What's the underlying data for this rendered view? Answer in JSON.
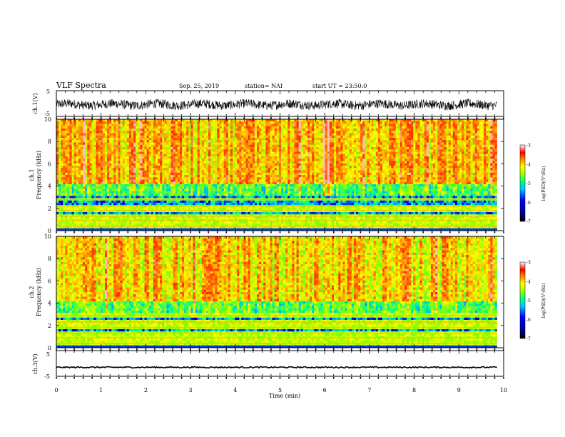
{
  "header": {
    "title": "VLF Spectra",
    "date": "Sep. 25, 2019",
    "station": "station= NAI",
    "start": "start UT = 23:50:0"
  },
  "chart_data": [
    {
      "type": "line",
      "name": "ch1-waveform",
      "ylabel": "ch.1(V)",
      "ylim": [
        -5,
        5
      ],
      "yticks": [
        "5",
        "-5"
      ],
      "note_trace": "noisy waveform centred near -1 V spanning 0-9.8 min"
    },
    {
      "type": "heatmap",
      "name": "ch1-spectrogram",
      "ylabel_lines": [
        "ch.1",
        "Frequency (kHz)"
      ],
      "ylim": [
        0,
        10
      ],
      "yticks": [
        "0",
        "2",
        "4",
        "6",
        "8",
        "10"
      ],
      "xlim": [
        0,
        10
      ],
      "colorbar": {
        "label": "log(PSD)(V²/Hz)",
        "range": [
          -7,
          -3
        ],
        "ticks": [
          "-3",
          "-4",
          "-5",
          "-6",
          "-7"
        ]
      },
      "bands_kHz": [
        0.4,
        0.9,
        1.3,
        1.8,
        2.2,
        2.8
      ]
    },
    {
      "type": "heatmap",
      "name": "ch2-spectrogram",
      "ylabel_lines": [
        "ch.2",
        "Frequency (kHz)"
      ],
      "ylim": [
        0,
        10
      ],
      "yticks": [
        "0",
        "2",
        "4",
        "6",
        "8",
        "10"
      ],
      "xlim": [
        0,
        10
      ],
      "colorbar": {
        "label": "log(PSD)(V²/Hz)",
        "range": [
          -7,
          -3
        ],
        "ticks": [
          "-3",
          "-4",
          "-5",
          "-6",
          "-7"
        ]
      },
      "bands_kHz": [
        0.4,
        0.9,
        1.3,
        1.8,
        2.3,
        2.9
      ]
    },
    {
      "type": "line",
      "name": "ch3-waveform",
      "ylabel": "ch.3(V)",
      "ylim": [
        -5,
        5
      ],
      "yticks": [
        "5",
        "-5"
      ],
      "xlabel": "Time (min)",
      "xlim": [
        0,
        10
      ],
      "xticks": [
        "0",
        "1",
        "2",
        "3",
        "4",
        "5",
        "6",
        "7",
        "8",
        "9",
        "10"
      ],
      "level": -1.5
    }
  ],
  "colors": {
    "scale": [
      "#000080",
      "#0000ff",
      "#00bfff",
      "#00ff80",
      "#80ff00",
      "#ffff00",
      "#ff8000",
      "#ff0000",
      "#ffffff"
    ],
    "axis": "#000000"
  }
}
